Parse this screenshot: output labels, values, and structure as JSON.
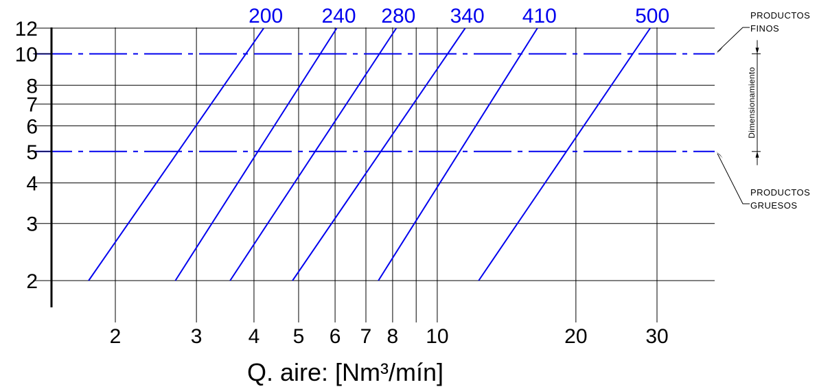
{
  "chart_data": {
    "type": "line",
    "title": "",
    "xlabel": "Q. aire: [Nm³/mín]",
    "ylabel": "",
    "x_scale": "log",
    "y_scale": "log",
    "xlim": [
      1.5,
      42
    ],
    "ylim": [
      1.7,
      12
    ],
    "grid": true,
    "x_ticks": [
      2,
      3,
      4,
      5,
      6,
      7,
      8,
      10,
      20,
      30
    ],
    "x_extra_gridlines": [
      9
    ],
    "y_ticks": [
      2,
      3,
      4,
      5,
      6,
      7,
      8,
      10,
      12
    ],
    "line_color": "#0000ee",
    "series": [
      {
        "name": "200",
        "points": [
          [
            1.75,
            2
          ],
          [
            4.2,
            12
          ]
        ]
      },
      {
        "name": "240",
        "points": [
          [
            2.7,
            2
          ],
          [
            6.05,
            12
          ]
        ]
      },
      {
        "name": "280",
        "points": [
          [
            3.55,
            2
          ],
          [
            8.15,
            12
          ]
        ]
      },
      {
        "name": "340",
        "points": [
          [
            4.85,
            2
          ],
          [
            11.5,
            12
          ]
        ]
      },
      {
        "name": "410",
        "points": [
          [
            7.45,
            2
          ],
          [
            16.5,
            12
          ]
        ]
      },
      {
        "name": "500",
        "points": [
          [
            12.3,
            2
          ],
          [
            29.0,
            12
          ]
        ]
      }
    ],
    "reference_lines": [
      {
        "y": 10,
        "style": "dash-dot",
        "label": "PRODUCTOS FINOS"
      },
      {
        "y": 5,
        "style": "dash-dot",
        "label": "PRODUCTOS GRUESOS"
      }
    ],
    "dimension_label": "Dimensionamiento"
  }
}
